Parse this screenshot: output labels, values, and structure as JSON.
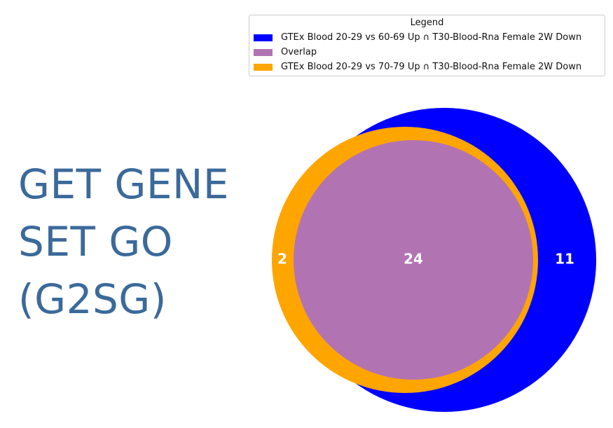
{
  "logo": {
    "line1": "GET GENE",
    "line2": "SET GO",
    "line3": "(G2SG)"
  },
  "legend": {
    "title": "Legend",
    "items": [
      {
        "label": "GTEx Blood 20-29 vs 60-69 Up ∩ T30-Blood-Rna Female 2W Down",
        "color": "#0000ff"
      },
      {
        "label": "Overlap",
        "color": "#b273b3"
      },
      {
        "label": "GTEx Blood 20-29 vs 70-79 Up ∩ T30-Blood-Rna Female 2W Down",
        "color": "#ffa500"
      }
    ]
  },
  "venn": {
    "left_only": "2",
    "overlap": "24",
    "right_only": "11"
  }
}
